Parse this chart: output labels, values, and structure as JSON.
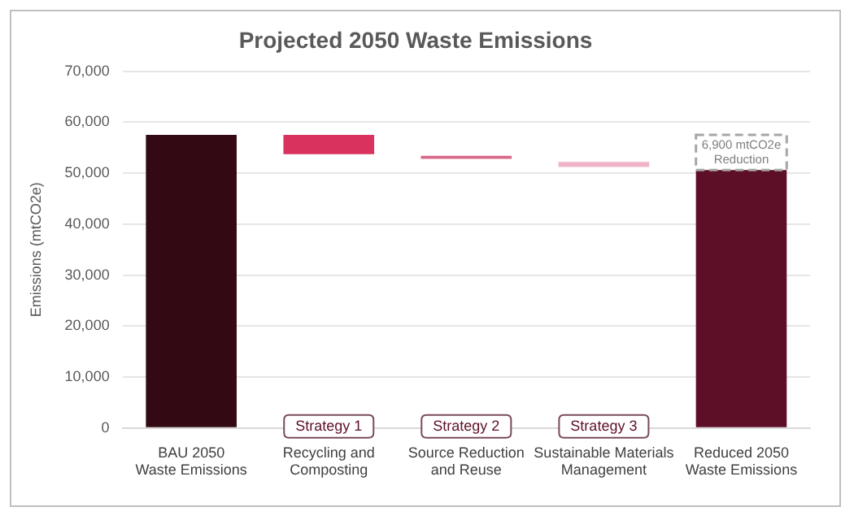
{
  "chart_data": {
    "type": "bar",
    "title": "Projected 2050 Waste Emissions",
    "ylabel": "Emissions (mtCO2e)",
    "categories": [
      "BAU 2050\nWaste Emissions",
      "Recycling and\nComposting",
      "Source Reduction\nand Reuse",
      "Sustainable Materials\nManagement",
      "Reduced 2050\nWaste Emissions"
    ],
    "values": [
      57500,
      3800,
      600,
      1000,
      50600
    ],
    "base": [
      0,
      53700,
      52800,
      51200,
      0
    ],
    "colors": [
      "#330a14",
      "#d9325e",
      "#d9698a",
      "#f0b4c8",
      "#5c0f26"
    ],
    "ylim": [
      0,
      70000
    ],
    "yticks": [
      {
        "value": 0,
        "label": "0"
      },
      {
        "value": 10000,
        "label": "10,000"
      },
      {
        "value": 20000,
        "label": "20,000"
      },
      {
        "value": 30000,
        "label": "30,000"
      },
      {
        "value": 40000,
        "label": "40,000"
      },
      {
        "value": 50000,
        "label": "50,000"
      },
      {
        "value": 60000,
        "label": "60,000"
      },
      {
        "value": 70000,
        "label": "70,000"
      }
    ],
    "grid": "y",
    "legend": false,
    "annotations": [
      "Strategy 1",
      "Strategy 2",
      "Strategy 3",
      "6,900 mtCO2e Reduction"
    ]
  }
}
